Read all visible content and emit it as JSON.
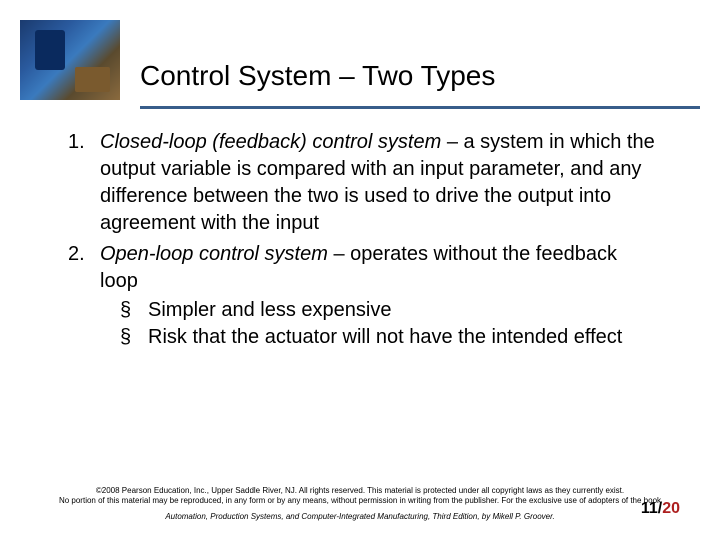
{
  "title": "Control System – Two Types",
  "items": [
    {
      "term": "Closed-loop (feedback) control system",
      "desc": " – a system in which the output variable is compared with an input parameter, and any difference between the two is used to drive the output into agreement with the input"
    },
    {
      "term": "Open-loop control system",
      "desc": " – operates without the feedback loop",
      "sub": [
        "Simpler and less expensive",
        "Risk that the actuator will not have the intended effect"
      ]
    }
  ],
  "footer": {
    "copyright1": "©2008 Pearson Education, Inc., Upper Saddle River, NJ. All rights reserved. This material is protected under all copyright laws as they currently exist.",
    "copyright2": "No portion of this material may be reproduced, in any form or by any means, without permission in writing from the publisher. For the exclusive use of adopters of the book",
    "book": "Automation, Production Systems, and Computer-Integrated Manufacturing, Third Edition, by Mikell P. Groover."
  },
  "page": {
    "current": "11",
    "sep": "/",
    "total": "20"
  }
}
